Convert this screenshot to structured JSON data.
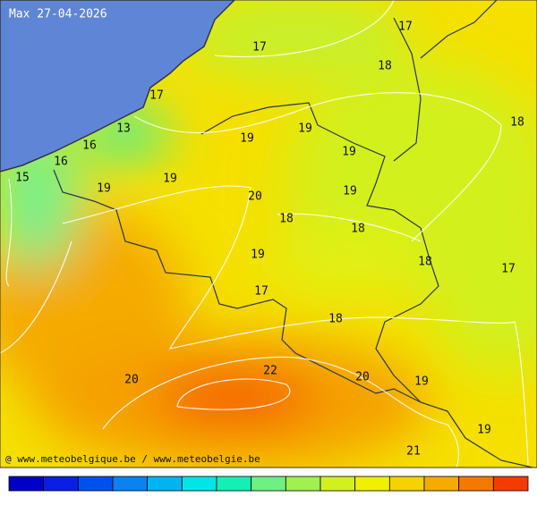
{
  "title": "Max 27-04-2026",
  "labels": [
    17,
    17,
    18,
    17,
    13,
    16,
    16,
    15,
    19,
    19,
    19,
    19,
    19,
    20,
    19,
    18,
    18,
    19,
    17,
    18,
    17,
    18,
    18,
    22,
    20,
    20,
    19,
    19,
    21
  ],
  "credit": "@ www.meteobelgique.be / www.meteobelgie.be",
  "colorbar": [
    "#0000c8",
    "#0a1ee6",
    "#0050f0",
    "#0a82f0",
    "#00b4f0",
    "#00e6e6",
    "#14f0b4",
    "#6ef082",
    "#a0f050",
    "#d2f01e",
    "#f0f000",
    "#f5d200",
    "#f5aa00",
    "#f57800",
    "#f53c00"
  ]
}
